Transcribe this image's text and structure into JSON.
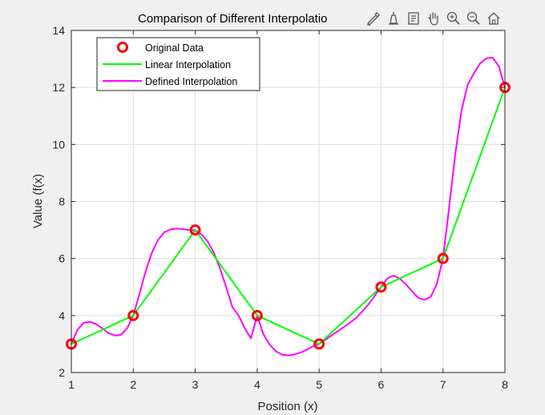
{
  "figure": {
    "title": "Comparison of Different Interpolatio",
    "toolbar": [
      {
        "name": "brush-icon",
        "label": "Brush"
      },
      {
        "name": "export-icon",
        "label": "Export"
      },
      {
        "name": "datatip-icon",
        "label": "Data Tips"
      },
      {
        "name": "pan-icon",
        "label": "Pan"
      },
      {
        "name": "zoom-in-icon",
        "label": "Zoom In"
      },
      {
        "name": "zoom-out-icon",
        "label": "Zoom Out"
      },
      {
        "name": "home-icon",
        "label": "Restore View"
      }
    ]
  },
  "chart_data": {
    "type": "line",
    "title": "Comparison of Different Interpolatio",
    "xlabel": "Position (x)",
    "ylabel": "Value (f(x)",
    "xlim": [
      1,
      8
    ],
    "ylim": [
      2,
      14
    ],
    "xticks": [
      1,
      2,
      3,
      4,
      5,
      6,
      7,
      8
    ],
    "yticks": [
      2,
      4,
      6,
      8,
      10,
      12,
      14
    ],
    "grid": true,
    "legend_position": "top-left",
    "series": [
      {
        "name": "Original Data",
        "kind": "markers",
        "color": "#ff0000",
        "x": [
          1,
          2,
          3,
          4,
          5,
          6,
          7,
          8
        ],
        "y": [
          3,
          4,
          7,
          4,
          3,
          5,
          6,
          12
        ]
      },
      {
        "name": "Linear Interpolation",
        "kind": "line",
        "color": "#00ff00",
        "x": [
          1,
          2,
          3,
          4,
          5,
          6,
          7,
          8
        ],
        "y": [
          3,
          4,
          7,
          4,
          3,
          5,
          6,
          12
        ]
      },
      {
        "name": "Defined Interpolation",
        "kind": "line",
        "color": "#ff00ff",
        "x": [
          1.0,
          1.1,
          1.2,
          1.3,
          1.4,
          1.5,
          1.6,
          1.7,
          1.8,
          1.9,
          2.0,
          2.1,
          2.2,
          2.3,
          2.4,
          2.5,
          2.6,
          2.7,
          2.8,
          2.9,
          3.0,
          3.1,
          3.2,
          3.3,
          3.4,
          3.5,
          3.6,
          3.7,
          3.8,
          3.9,
          4.0,
          4.1,
          4.2,
          4.3,
          4.4,
          4.5,
          4.6,
          4.7,
          4.8,
          4.9,
          5.0,
          5.1,
          5.2,
          5.3,
          5.4,
          5.5,
          5.6,
          5.7,
          5.8,
          5.9,
          6.0,
          6.1,
          6.2,
          6.3,
          6.4,
          6.5,
          6.6,
          6.7,
          6.8,
          6.9,
          7.0,
          7.1,
          7.2,
          7.3,
          7.4,
          7.5,
          7.6,
          7.7,
          7.8,
          7.9,
          8.0
        ],
        "y": [
          3.0,
          3.5,
          3.75,
          3.78,
          3.7,
          3.55,
          3.38,
          3.3,
          3.32,
          3.55,
          4.0,
          4.75,
          5.55,
          6.2,
          6.65,
          6.92,
          7.02,
          7.05,
          7.03,
          7.0,
          7.0,
          6.85,
          6.6,
          6.2,
          5.65,
          5.0,
          4.3,
          4.0,
          3.55,
          3.2,
          4.0,
          3.35,
          2.98,
          2.75,
          2.63,
          2.6,
          2.63,
          2.7,
          2.8,
          2.92,
          3.0,
          3.15,
          3.3,
          3.45,
          3.6,
          3.75,
          3.92,
          4.15,
          4.4,
          4.7,
          5.0,
          5.3,
          5.4,
          5.3,
          5.1,
          4.85,
          4.62,
          4.55,
          4.65,
          5.1,
          6.0,
          7.8,
          9.7,
          11.2,
          12.1,
          12.5,
          12.85,
          13.02,
          13.05,
          12.75,
          12.0
        ]
      }
    ]
  }
}
